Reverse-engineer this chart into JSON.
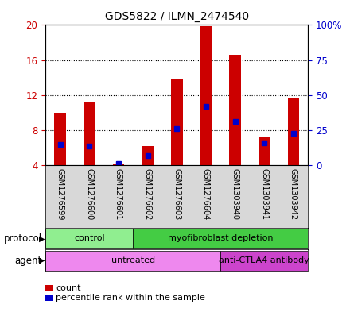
{
  "title": "GDS5822 / ILMN_2474540",
  "samples": [
    "GSM1276599",
    "GSM1276600",
    "GSM1276601",
    "GSM1276602",
    "GSM1276603",
    "GSM1276604",
    "GSM1303940",
    "GSM1303941",
    "GSM1303942"
  ],
  "counts": [
    10.0,
    11.2,
    4.1,
    6.2,
    13.8,
    19.9,
    16.6,
    7.3,
    11.6
  ],
  "percentiles": [
    15.0,
    14.0,
    1.5,
    7.0,
    26.0,
    42.0,
    31.0,
    16.0,
    23.0
  ],
  "ylim_left": [
    4,
    20
  ],
  "ylim_right": [
    0,
    100
  ],
  "yticks_left": [
    4,
    8,
    12,
    16,
    20
  ],
  "yticks_right": [
    0,
    25,
    50,
    75,
    100
  ],
  "ytick_labels_right": [
    "0",
    "25",
    "50",
    "75",
    "100%"
  ],
  "bar_color": "#cc0000",
  "dot_color": "#0000cc",
  "bar_width": 0.4,
  "protocol_control_samples": [
    0,
    1,
    2
  ],
  "protocol_myofib_samples": [
    3,
    4,
    5,
    6,
    7,
    8
  ],
  "agent_untreated_samples": [
    0,
    1,
    2,
    3,
    4,
    5
  ],
  "agent_anti_samples": [
    6,
    7,
    8
  ],
  "control_color": "#90ee90",
  "myofib_color": "#44cc44",
  "untreated_color": "#ee88ee",
  "anti_color": "#cc44cc",
  "protocol_label": "protocol",
  "agent_label": "agent",
  "protocol_control_text": "control",
  "protocol_myofib_text": "myofibroblast depletion",
  "agent_untreated_text": "untreated",
  "agent_anti_text": "anti-CTLA4 antibody",
  "legend_count_label": "count",
  "legend_percentile_label": "percentile rank within the sample",
  "bg_color": "#d8d8d8",
  "plot_bg": "#ffffff",
  "left_tick_color": "#cc0000",
  "right_tick_color": "#0000cc"
}
